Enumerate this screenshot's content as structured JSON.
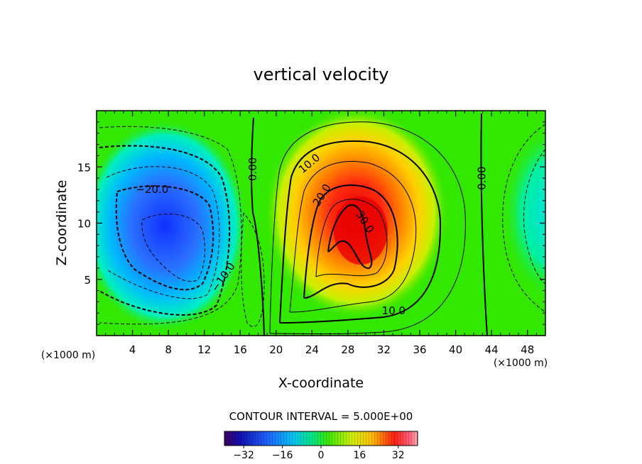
{
  "chart_data": {
    "type": "heatmap",
    "title": "vertical velocity",
    "xlabel": "X-coordinate",
    "ylabel": "Z-coordinate",
    "x_unit": "(×1000 m)",
    "z_unit": "(×1000 m)",
    "xlim": [
      0,
      50
    ],
    "ylim": [
      0,
      20
    ],
    "x_ticks": [
      4,
      8,
      12,
      16,
      20,
      24,
      28,
      32,
      36,
      40,
      44,
      48
    ],
    "y_ticks": [
      5,
      10,
      15
    ],
    "contour_interval_text": "CONTOUR INTERVAL = 5.000E+00",
    "colorbar": {
      "min": -40,
      "max": 40,
      "ticks": [
        -32,
        -16,
        0,
        16,
        32
      ],
      "tick_labels": [
        "−32",
        "−16",
        "0",
        "16",
        "32"
      ]
    },
    "contour_labels": [
      {
        "text": "0.00",
        "x": 17.4,
        "z": 14.8,
        "rotate": -90
      },
      {
        "text": "10.0",
        "x": 23.7,
        "z": 15.3,
        "rotate": -40
      },
      {
        "text": "20.0",
        "x": 25.1,
        "z": 12.5,
        "rotate": -58
      },
      {
        "text": "30.0",
        "x": 29.9,
        "z": 10.1,
        "rotate": 58
      },
      {
        "text": "0.00",
        "x": 42.9,
        "z": 14.0,
        "rotate": -90
      },
      {
        "text": "−20.0",
        "x": 6.2,
        "z": 13.0,
        "rotate": 0
      },
      {
        "text": "−10.0",
        "x": 14.1,
        "z": 5.2,
        "rotate": -55
      },
      {
        "text": "10.0",
        "x": 33.1,
        "z": 2.2,
        "rotate": 0
      }
    ],
    "field_features": [
      {
        "kind": "updraft",
        "x": 29,
        "z": 9,
        "peak": 35
      },
      {
        "kind": "downdraft",
        "x": 9,
        "z": 9,
        "peak": -28
      },
      {
        "kind": "downdraft",
        "x": 50,
        "z": 10,
        "peak": -10
      }
    ]
  }
}
